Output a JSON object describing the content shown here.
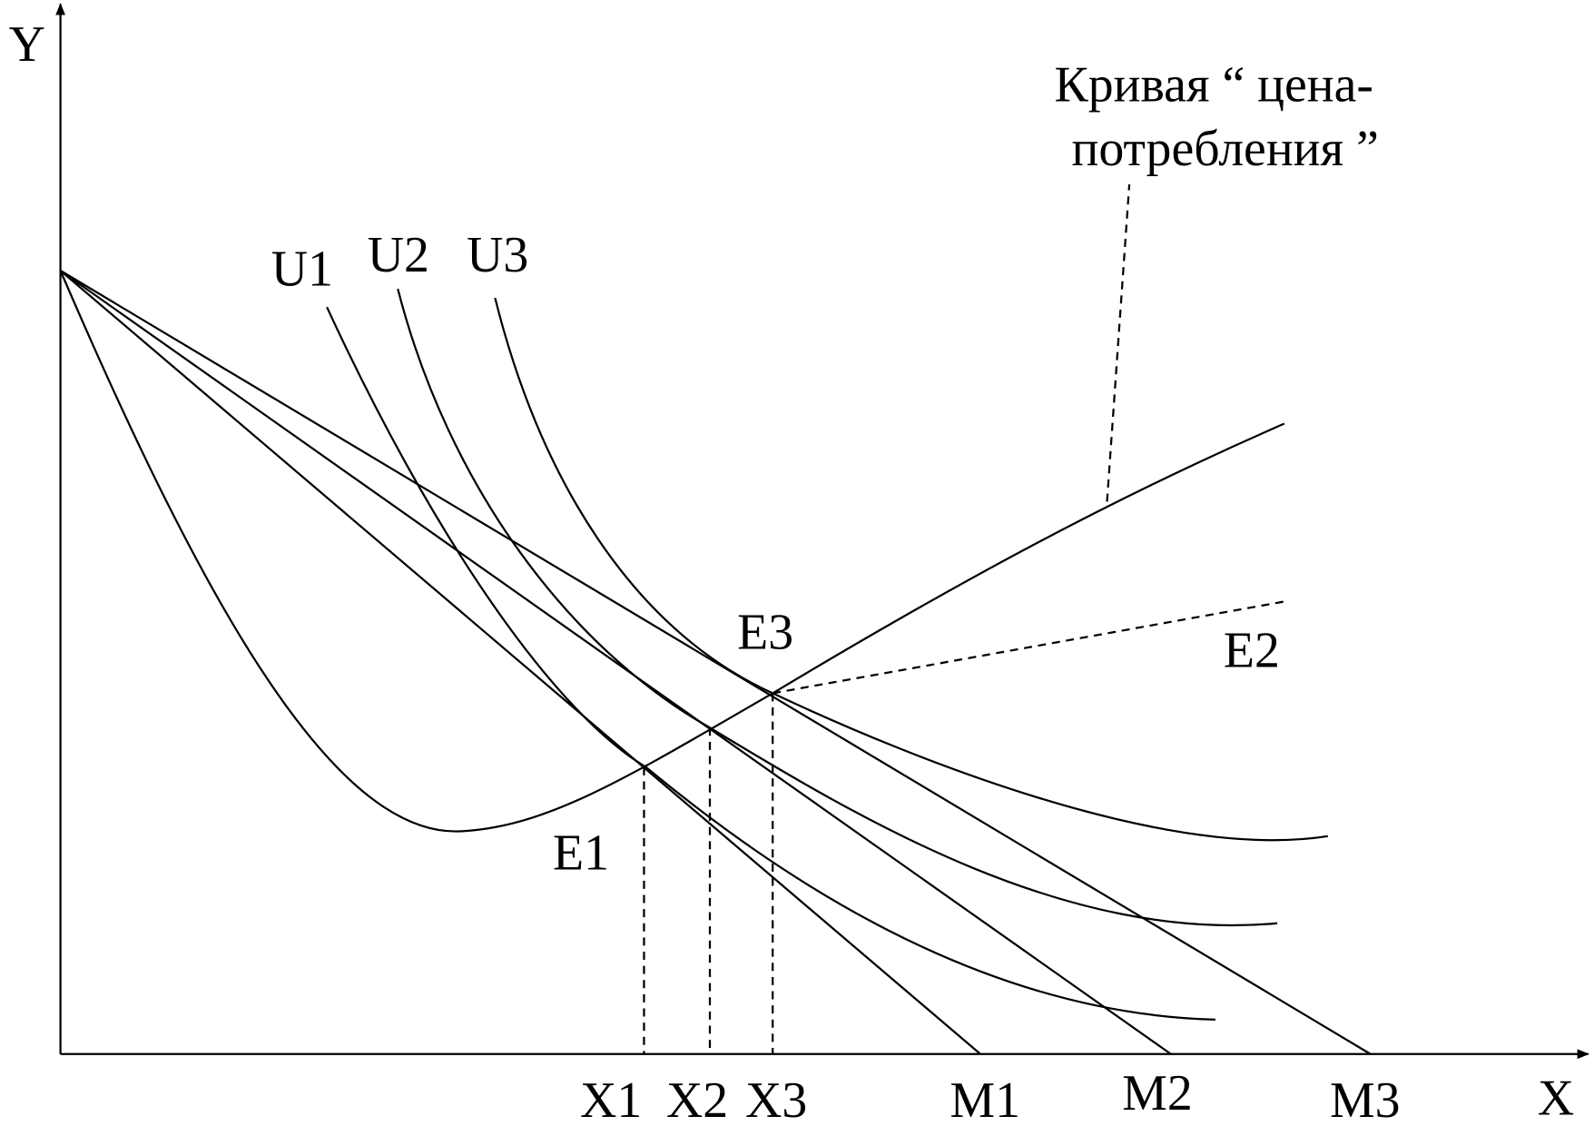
{
  "axes": {
    "y": "Y",
    "x": "X"
  },
  "indifference_curves": [
    "U1",
    "U2",
    "U3"
  ],
  "equilibria": [
    "E1",
    "E2",
    "E3"
  ],
  "quantities": [
    "X1",
    "X2",
    "X3"
  ],
  "budget_intercepts": [
    "M1",
    "M2",
    "M3"
  ],
  "annotation": {
    "line1": "Кривая “ цена-",
    "line2": "потребления ”"
  }
}
